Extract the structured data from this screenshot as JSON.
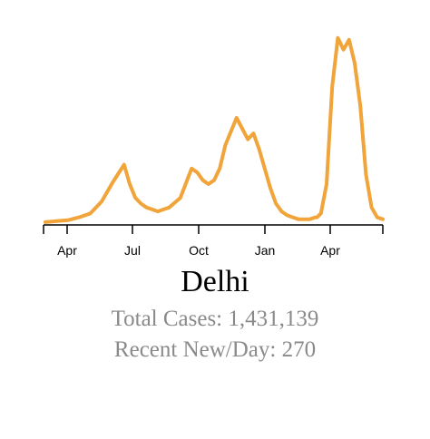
{
  "title": "Delhi",
  "total_cases_text": "Total Cases: 1,431,139",
  "recent_new_text": "Recent New/Day: 270",
  "chart_data": {
    "type": "line",
    "color": "#f0a43a",
    "x_axis_ticks": [
      "Apr",
      "Jul",
      "Oct",
      "Jan",
      "Apr"
    ],
    "series": [
      {
        "x": [
          0,
          2,
          4,
          6,
          8,
          10,
          12,
          14,
          15,
          16,
          17,
          18,
          19,
          20,
          21,
          22,
          24,
          26,
          27,
          28,
          29,
          30,
          31,
          32,
          34,
          36,
          37,
          38,
          39,
          40,
          41,
          42,
          43,
          44,
          45,
          46,
          47,
          48,
          48.3,
          49,
          50,
          51,
          52,
          53,
          54,
          55,
          56,
          57,
          58,
          59,
          60
        ],
        "y": [
          0.5,
          1,
          1.5,
          3,
          5,
          11,
          21,
          30,
          20,
          13,
          10,
          8,
          7,
          6,
          7,
          8,
          13,
          28,
          26,
          22,
          20,
          22,
          28,
          40,
          54,
          43,
          46,
          38,
          28,
          18,
          10,
          6,
          4,
          3,
          2,
          2,
          2,
          3,
          3,
          5,
          20,
          70,
          95,
          89,
          94,
          82,
          60,
          25,
          8,
          3,
          2
        ]
      }
    ]
  }
}
